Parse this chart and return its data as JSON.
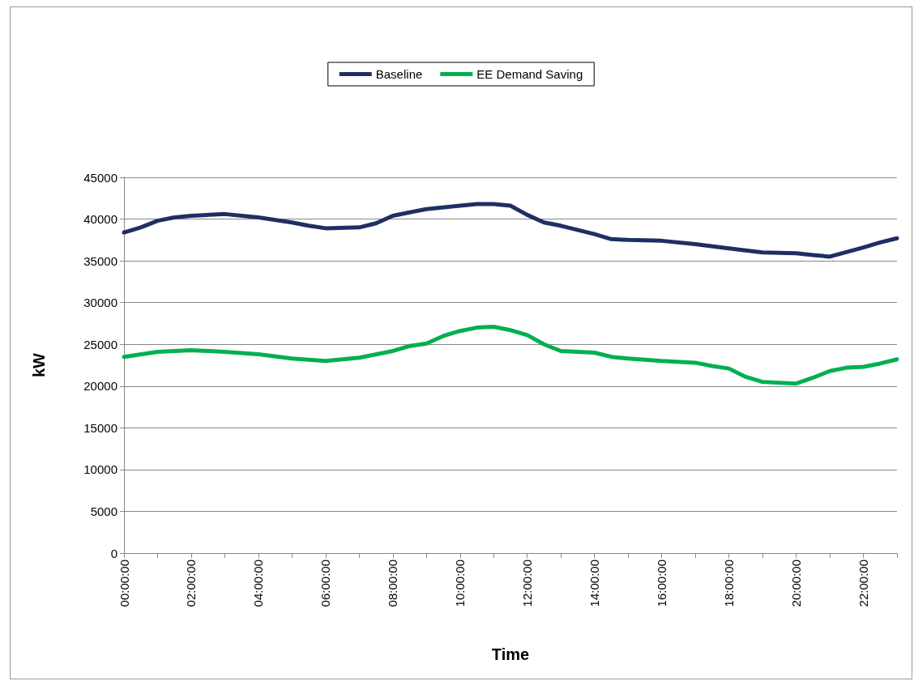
{
  "chart_data": {
    "type": "line",
    "xlabel": "Time",
    "ylabel": "kW",
    "legend": "top",
    "grid": "y",
    "marker": "none",
    "line_style": "solid",
    "xlim": [
      0,
      23
    ],
    "xticks": [
      {
        "value": 0,
        "label": "00:00:00"
      },
      {
        "value": 1,
        "label": null
      },
      {
        "value": 2,
        "label": "02:00:00"
      },
      {
        "value": 3,
        "label": null
      },
      {
        "value": 4,
        "label": "04:00:00"
      },
      {
        "value": 5,
        "label": null
      },
      {
        "value": 6,
        "label": "06:00:00"
      },
      {
        "value": 7,
        "label": null
      },
      {
        "value": 8,
        "label": "08:00:00"
      },
      {
        "value": 9,
        "label": null
      },
      {
        "value": 10,
        "label": "10:00:00"
      },
      {
        "value": 11,
        "label": null
      },
      {
        "value": 12,
        "label": "12:00:00"
      },
      {
        "value": 13,
        "label": null
      },
      {
        "value": 14,
        "label": "14:00:00"
      },
      {
        "value": 15,
        "label": null
      },
      {
        "value": 16,
        "label": "16:00:00"
      },
      {
        "value": 17,
        "label": null
      },
      {
        "value": 18,
        "label": "18:00:00"
      },
      {
        "value": 19,
        "label": null
      },
      {
        "value": 20,
        "label": "20:00:00"
      },
      {
        "value": 21,
        "label": null
      },
      {
        "value": 22,
        "label": "22:00:00"
      },
      {
        "value": 23,
        "label": null
      }
    ],
    "ylim": [
      0,
      45000
    ],
    "yticks": [
      0,
      5000,
      10000,
      15000,
      20000,
      25000,
      30000,
      35000,
      40000,
      45000
    ],
    "series": [
      {
        "name": "Baseline",
        "color": "#1f2f63",
        "x": [
          0,
          0.5,
          1,
          1.5,
          2,
          3,
          4,
          5,
          5.5,
          6,
          7,
          7.5,
          8,
          8.5,
          9,
          10,
          10.5,
          11,
          11.5,
          12,
          12.5,
          13,
          14,
          14.5,
          15,
          16,
          17,
          18,
          19,
          20,
          20.5,
          21,
          22,
          22.5,
          23
        ],
        "values": [
          38400,
          39000,
          39800,
          40200,
          40400,
          40600,
          40200,
          39600,
          39200,
          38900,
          39000,
          39500,
          40400,
          40800,
          41200,
          41600,
          41800,
          41800,
          41600,
          40500,
          39600,
          39200,
          38200,
          37600,
          37500,
          37400,
          37000,
          36500,
          36000,
          35900,
          35700,
          35500,
          36600,
          37200,
          37700
        ]
      },
      {
        "name": "EE Demand Saving",
        "color": "#00b050",
        "x": [
          0,
          1,
          2,
          3,
          4,
          5,
          6,
          7,
          8,
          8.5,
          9,
          9.5,
          10,
          10.5,
          11,
          11.5,
          12,
          12.5,
          13,
          14,
          14.5,
          15,
          16,
          17,
          17.5,
          18,
          18.5,
          19,
          20,
          20.5,
          21,
          21.5,
          22,
          22.5,
          23
        ],
        "values": [
          23500,
          24100,
          24300,
          24100,
          23800,
          23300,
          23000,
          23400,
          24200,
          24800,
          25100,
          26000,
          26600,
          27000,
          27100,
          26700,
          26100,
          25000,
          24200,
          24000,
          23500,
          23300,
          23000,
          22800,
          22400,
          22100,
          21100,
          20500,
          20300,
          21000,
          21800,
          22200,
          22300,
          22700,
          23200
        ]
      }
    ]
  }
}
